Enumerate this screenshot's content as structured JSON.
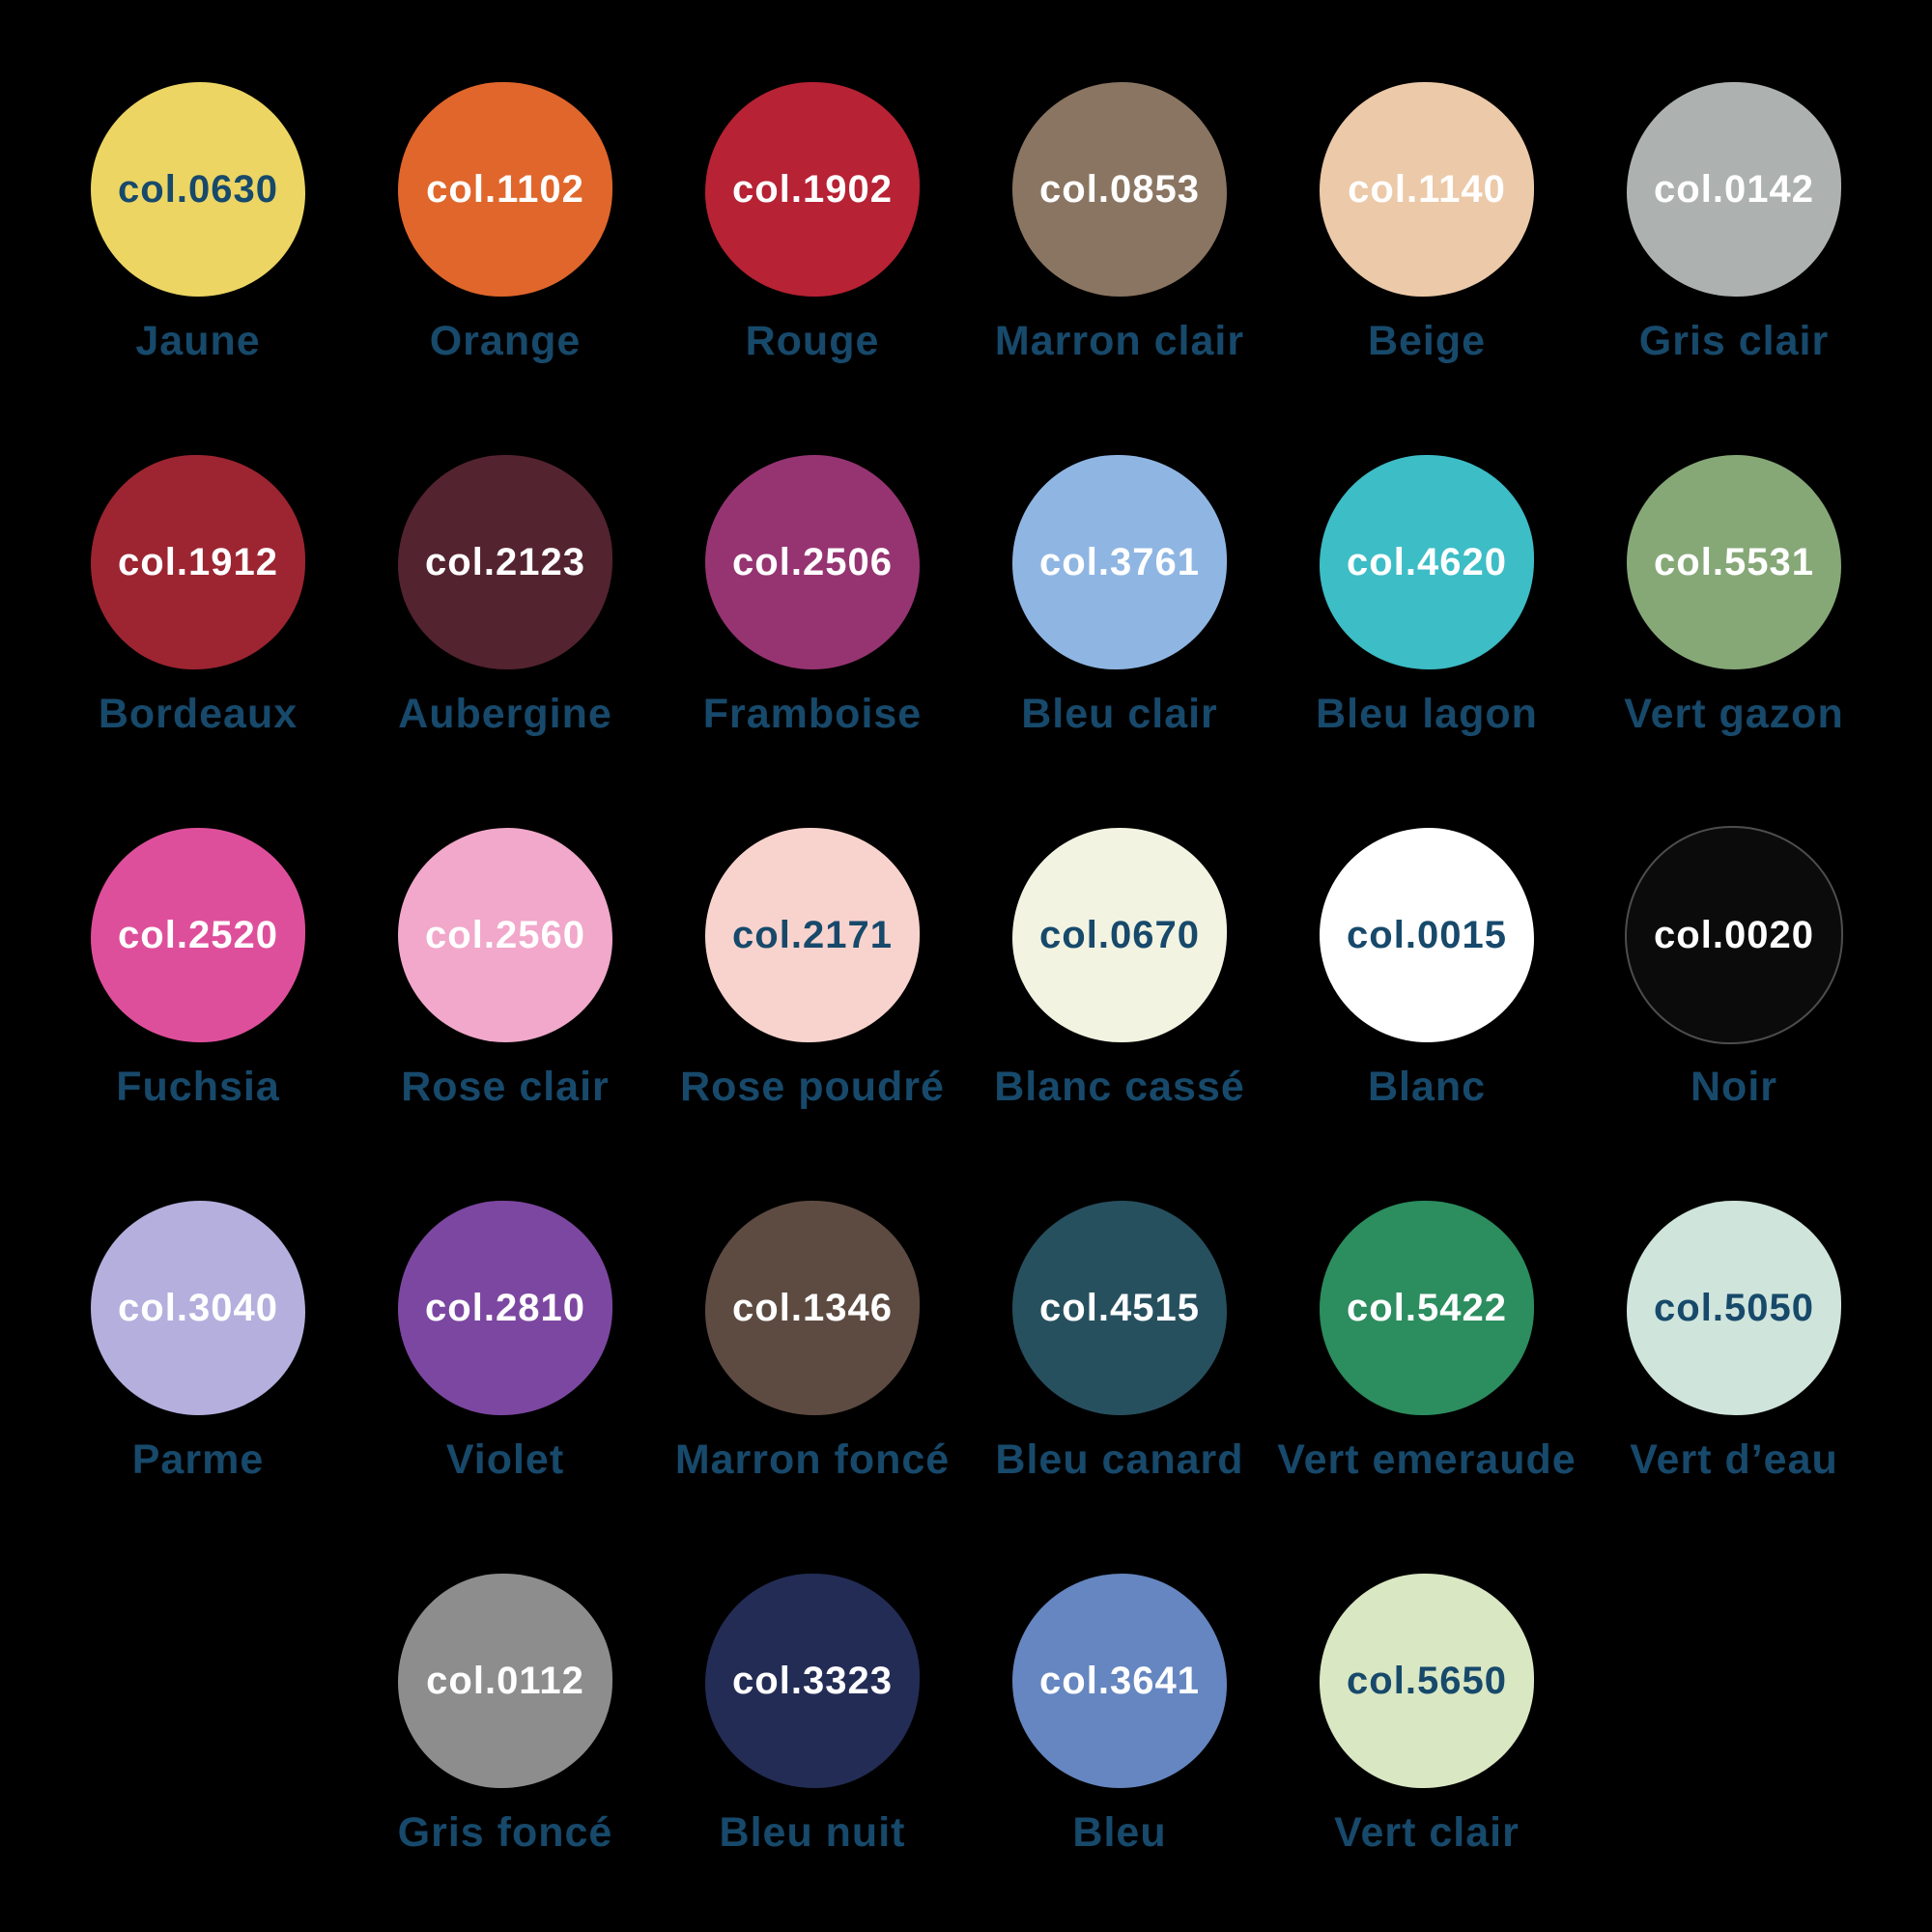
{
  "background": "#000000",
  "label_color": "#17496b",
  "rows": [
    {
      "items": [
        {
          "code": "col.0630",
          "name": "Jaune",
          "color": "#ecd563",
          "text_color": "#17496b"
        },
        {
          "code": "col.1102",
          "name": "Orange",
          "color": "#e0662b",
          "text_color": "#ffffff"
        },
        {
          "code": "col.1902",
          "name": "Rouge",
          "color": "#b72234",
          "text_color": "#ffffff"
        },
        {
          "code": "col.0853",
          "name": "Marron clair",
          "color": "#8a7562",
          "text_color": "#ffffff"
        },
        {
          "code": "col.1140",
          "name": "Beige",
          "color": "#ecc9a8",
          "text_color": "#ffffff"
        },
        {
          "code": "col.0142",
          "name": "Gris clair",
          "color": "#adb2b0",
          "text_color": "#ffffff"
        }
      ]
    },
    {
      "items": [
        {
          "code": "col.1912",
          "name": "Bordeaux",
          "color": "#9c2531",
          "text_color": "#ffffff"
        },
        {
          "code": "col.2123",
          "name": "Aubergine",
          "color": "#542330",
          "text_color": "#ffffff"
        },
        {
          "code": "col.2506",
          "name": "Framboise",
          "color": "#963472",
          "text_color": "#ffffff"
        },
        {
          "code": "col.3761",
          "name": "Bleu clair",
          "color": "#8fb6e3",
          "text_color": "#ffffff"
        },
        {
          "code": "col.4620",
          "name": "Bleu lagon",
          "color": "#3dbdc6",
          "text_color": "#ffffff"
        },
        {
          "code": "col.5531",
          "name": "Vert gazon",
          "color": "#86a877",
          "text_color": "#ffffff"
        }
      ]
    },
    {
      "items": [
        {
          "code": "col.2520",
          "name": "Fuchsia",
          "color": "#de4f9b",
          "text_color": "#ffffff"
        },
        {
          "code": "col.2560",
          "name": "Rose clair",
          "color": "#f1a8ca",
          "text_color": "#ffffff"
        },
        {
          "code": "col.2171",
          "name": "Rose poudré",
          "color": "#f8d3cd",
          "text_color": "#17496b"
        },
        {
          "code": "col.0670",
          "name": "Blanc cassé",
          "color": "#f2f3e1",
          "text_color": "#17496b"
        },
        {
          "code": "col.0015",
          "name": "Blanc",
          "color": "#ffffff",
          "text_color": "#17496b"
        },
        {
          "code": "col.0020",
          "name": "Noir",
          "color": "#0b0b0b",
          "text_color": "#ffffff"
        }
      ]
    },
    {
      "items": [
        {
          "code": "col.3040",
          "name": "Parme",
          "color": "#b4afdd",
          "text_color": "#ffffff"
        },
        {
          "code": "col.2810",
          "name": "Violet",
          "color": "#7c47a1",
          "text_color": "#ffffff"
        },
        {
          "code": "col.1346",
          "name": "Marron foncé",
          "color": "#5d4b41",
          "text_color": "#ffffff"
        },
        {
          "code": "col.4515",
          "name": "Bleu canard",
          "color": "#27505f",
          "text_color": "#ffffff"
        },
        {
          "code": "col.5422",
          "name": "Vert emeraude",
          "color": "#2c8d5e",
          "text_color": "#ffffff"
        },
        {
          "code": "col.5050",
          "name": "Vert d’eau",
          "color": "#cfe4db",
          "text_color": "#17496b"
        }
      ]
    },
    {
      "items": [
        {
          "code": "col.0112",
          "name": "Gris foncé",
          "color": "#8d8d8d",
          "text_color": "#ffffff"
        },
        {
          "code": "col.3323",
          "name": "Bleu nuit",
          "color": "#232c55",
          "text_color": "#ffffff"
        },
        {
          "code": "col.3641",
          "name": "Bleu",
          "color": "#6586c0",
          "text_color": "#ffffff"
        },
        {
          "code": "col.5650",
          "name": "Vert clair",
          "color": "#d9e7c3",
          "text_color": "#17496b"
        }
      ]
    }
  ]
}
